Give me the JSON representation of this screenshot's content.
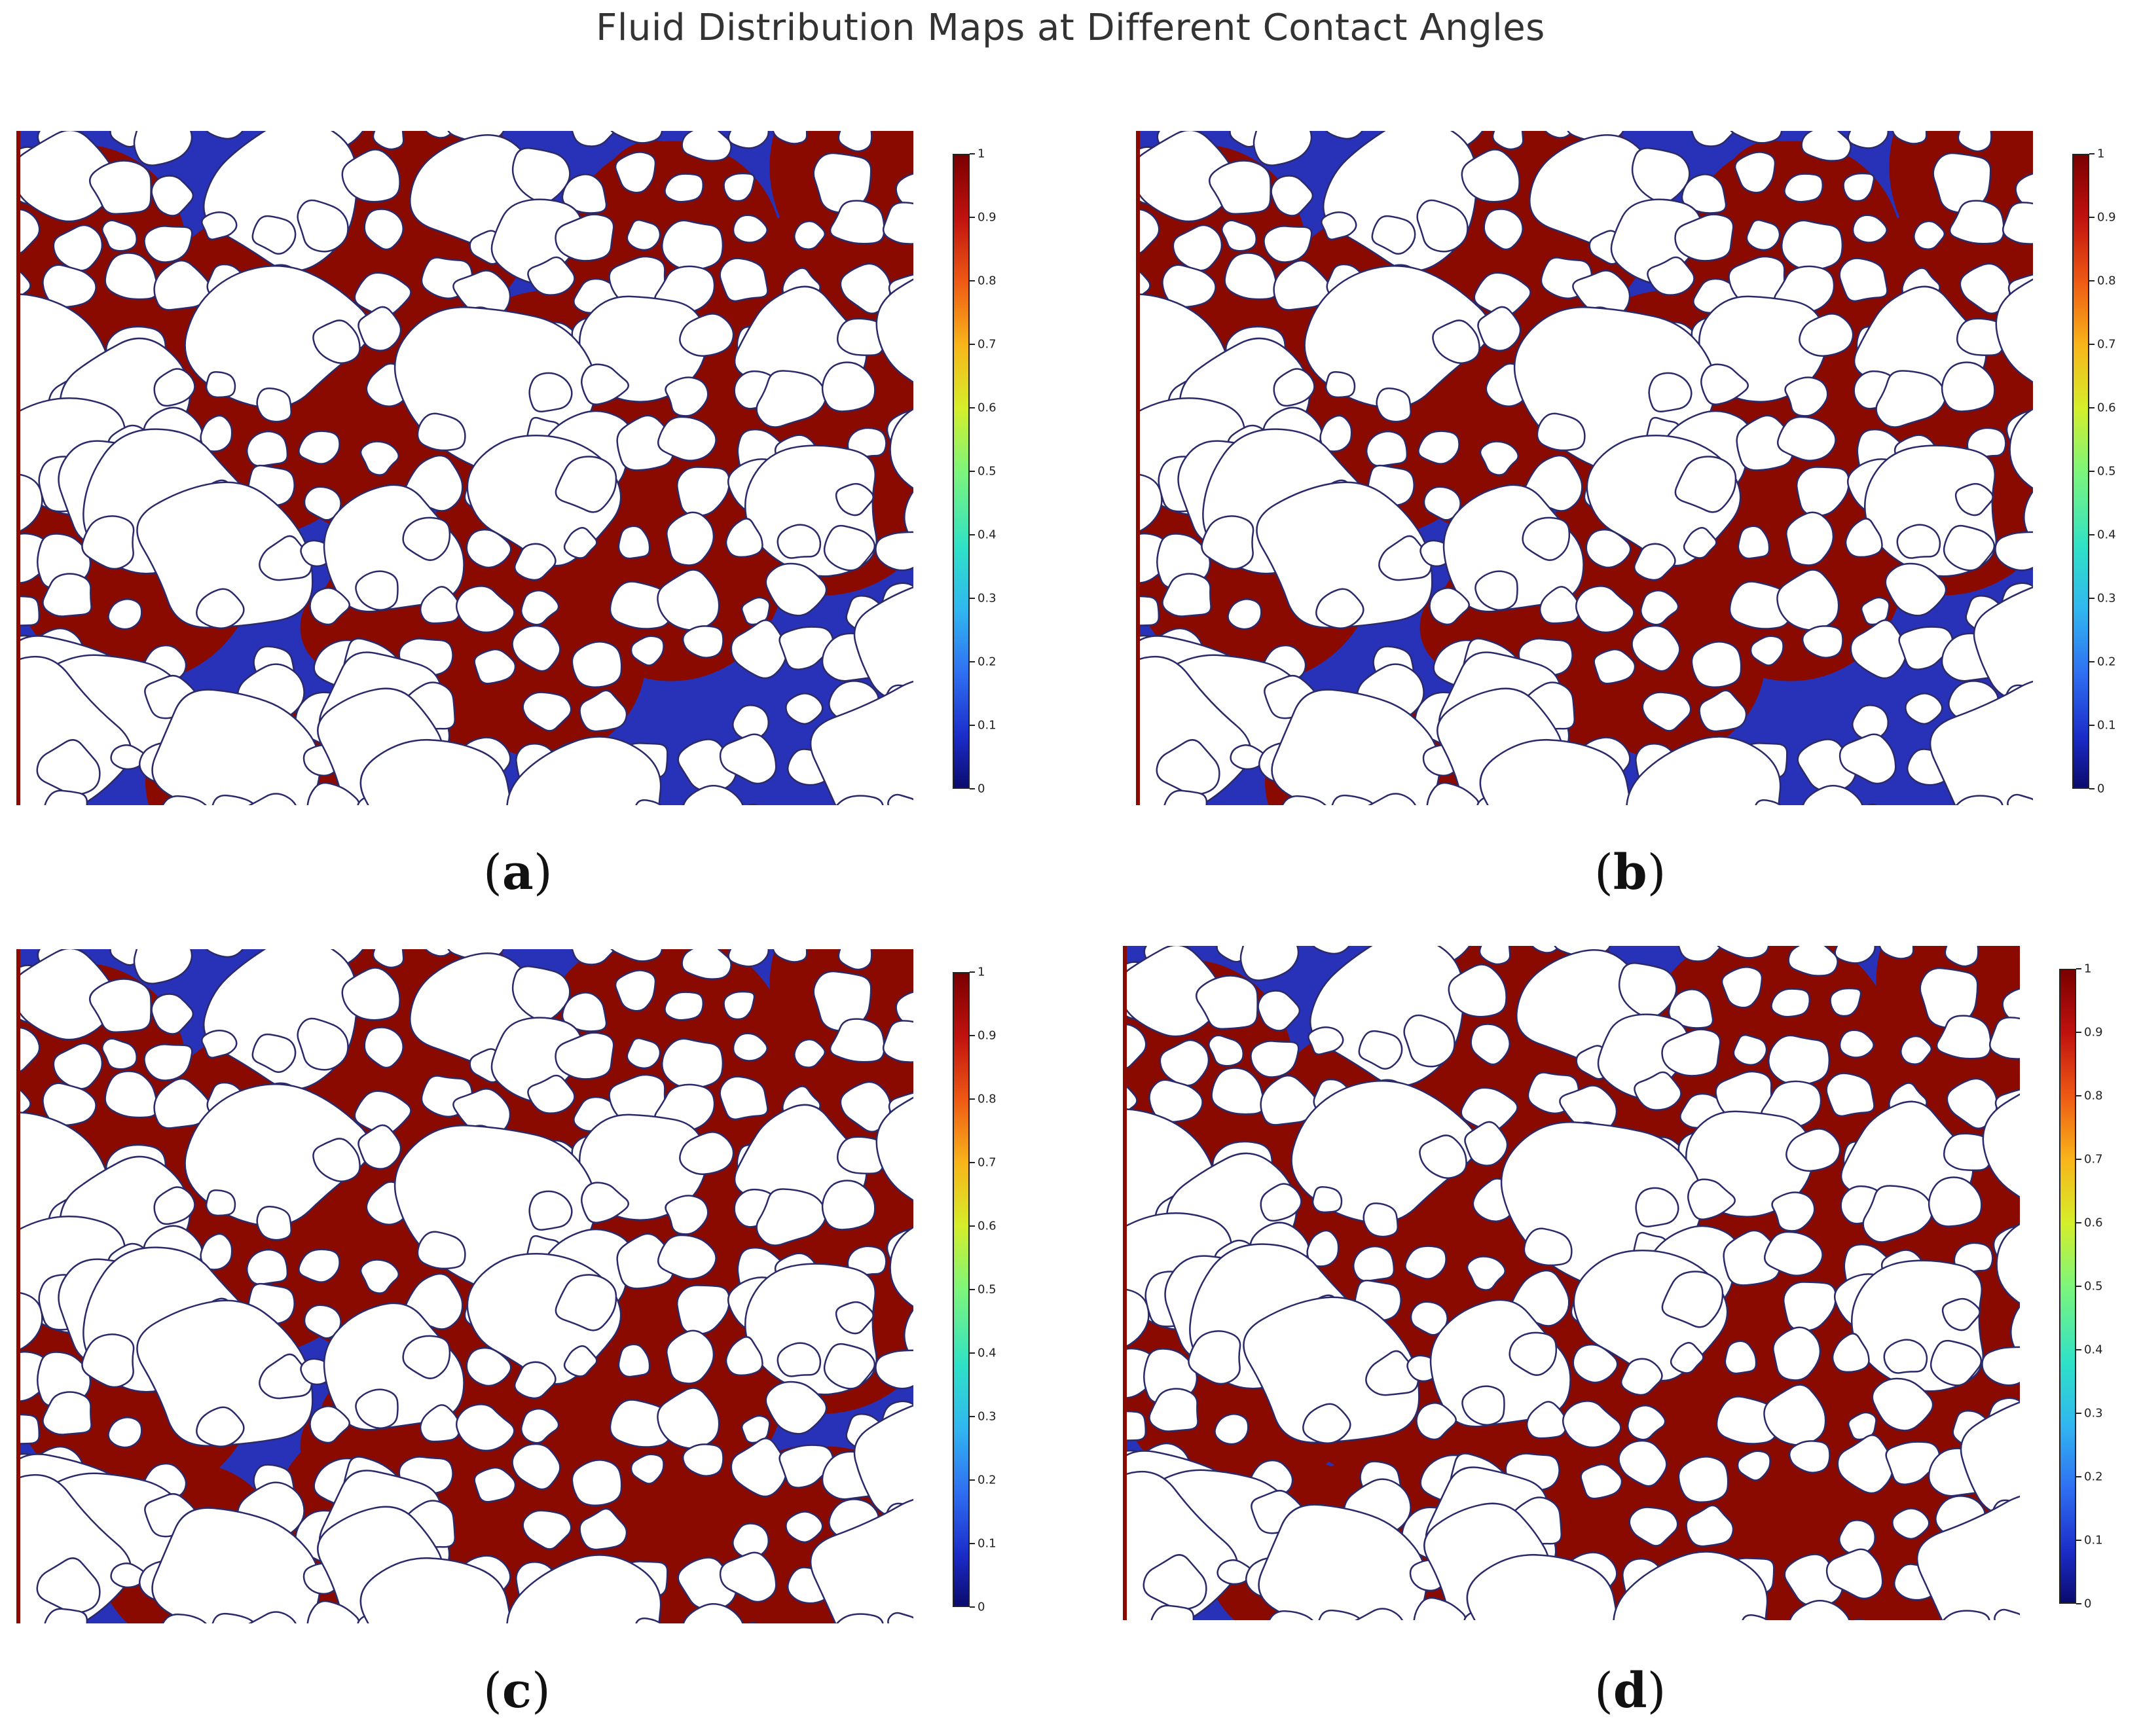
{
  "figure": {
    "title": "Fluid Distribution Maps at Different Contact Angles",
    "colorbar": {
      "ticks": [
        "0",
        "0.1",
        "0.2",
        "0.3",
        "0.4",
        "0.5",
        "0.6",
        "0.7",
        "0.8",
        "0.9",
        "1"
      ],
      "colormap": "jet",
      "low_color": "#0b0b6e",
      "high_color": "#7a0000"
    },
    "panels": [
      {
        "id": "a",
        "caption": "a",
        "dominant_phase": "mixed"
      },
      {
        "id": "b",
        "caption": "b",
        "dominant_phase": "mixed"
      },
      {
        "id": "c",
        "caption": "c",
        "dominant_phase": "mostly-red"
      },
      {
        "id": "d",
        "caption": "d",
        "dominant_phase": "almost-all-red"
      }
    ],
    "colors": {
      "phase_red": "#8a0a00",
      "phase_blue": "#2832b8",
      "grain": "#ffffff",
      "grain_edge": "#2a2a6a"
    }
  }
}
